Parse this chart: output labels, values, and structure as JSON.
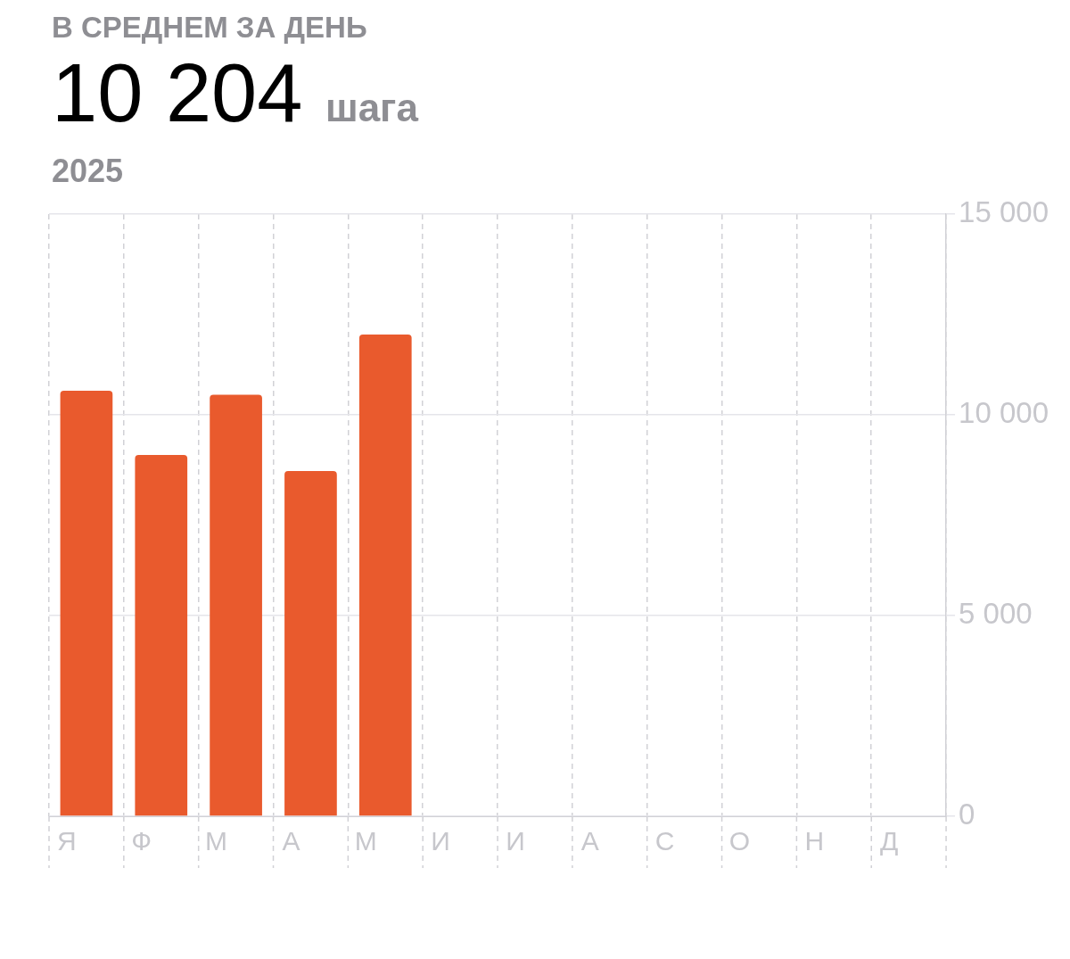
{
  "chart_data": {
    "type": "bar",
    "annotations": [
      "В СРЕДНЕМ ЗА ДЕНЬ"
    ],
    "title": "10 204 шага",
    "subtitle": "2025",
    "categories": [
      "Я",
      "Ф",
      "М",
      "А",
      "М",
      "И",
      "И",
      "А",
      "С",
      "О",
      "Н",
      "Д"
    ],
    "values": [
      10600,
      9000,
      10500,
      8600,
      12000,
      null,
      null,
      null,
      null,
      null,
      null,
      null
    ],
    "color": "#e95a2d",
    "ylim": [
      0,
      15000
    ],
    "yticks": [
      {
        "value": 0,
        "label": "0"
      },
      {
        "value": 5000,
        "label": "5 000"
      },
      {
        "value": 10000,
        "label": "10 000"
      },
      {
        "value": 15000,
        "label": "15 000"
      }
    ],
    "grid": true,
    "legend": false
  }
}
